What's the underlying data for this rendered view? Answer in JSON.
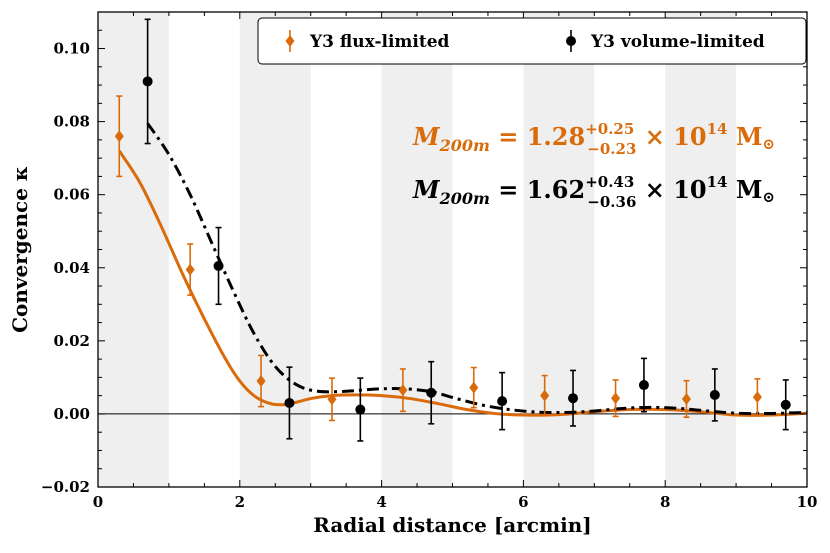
{
  "chart_data": {
    "type": "scatter",
    "xlabel": "Radial distance [arcmin]",
    "ylabel": "Convergence κ",
    "xlim": [
      0,
      10
    ],
    "ylim": [
      -0.02,
      0.11
    ],
    "xticks": [
      "0",
      "2",
      "4",
      "6",
      "8",
      "10"
    ],
    "xtick_values": [
      0,
      2,
      4,
      6,
      8,
      10
    ],
    "yticks": [
      "−0.02",
      "0.00",
      "0.02",
      "0.04",
      "0.06",
      "0.08",
      "0.10"
    ],
    "ytick_values": [
      -0.02,
      0.0,
      0.02,
      0.04,
      0.06,
      0.08,
      0.1
    ],
    "shaded_bands": [
      [
        0,
        1
      ],
      [
        2,
        3
      ],
      [
        4,
        5
      ],
      [
        6,
        7
      ],
      [
        8,
        9
      ]
    ],
    "legend_position": "top-right",
    "series": [
      {
        "name": "Y3 flux-limited",
        "color": "#d96b0b",
        "marker": "diamond",
        "x": [
          0.3,
          1.3,
          2.3,
          3.3,
          4.3,
          5.3,
          6.3,
          7.3,
          8.3,
          9.3
        ],
        "y": [
          0.076,
          0.0395,
          0.009,
          0.004,
          0.0065,
          0.0072,
          0.005,
          0.0043,
          0.0041,
          0.0046
        ],
        "err": [
          0.011,
          0.007,
          0.007,
          0.0058,
          0.0058,
          0.0055,
          0.0055,
          0.005,
          0.005,
          0.005
        ],
        "fit_x": [
          0.3,
          0.6,
          0.9,
          1.2,
          1.5,
          1.8,
          2.0,
          2.2,
          2.4,
          2.6,
          2.8,
          3.0,
          3.3,
          3.6,
          4.0,
          4.4,
          4.8,
          5.2,
          5.6,
          6.0,
          6.5,
          7.0,
          7.5,
          8.0,
          8.5,
          9.0,
          9.5,
          10.0
        ],
        "fit_y": [
          0.072,
          0.063,
          0.051,
          0.038,
          0.026,
          0.015,
          0.009,
          0.005,
          0.003,
          0.0025,
          0.0032,
          0.0042,
          0.005,
          0.0052,
          0.005,
          0.0042,
          0.0028,
          0.0012,
          0.0001,
          -0.0003,
          -0.0002,
          0.0006,
          0.0012,
          0.0012,
          0.0006,
          -0.0003,
          -0.0003,
          0.0002
        ]
      },
      {
        "name": "Y3 volume-limited",
        "color": "#000000",
        "marker": "circle",
        "x": [
          0.7,
          1.7,
          2.7,
          3.7,
          4.7,
          5.7,
          6.7,
          7.7,
          8.7,
          9.7
        ],
        "y": [
          0.091,
          0.0405,
          0.003,
          0.0012,
          0.0058,
          0.0035,
          0.0043,
          0.0079,
          0.0052,
          0.0025
        ],
        "err": [
          0.017,
          0.0105,
          0.0098,
          0.0086,
          0.0085,
          0.0078,
          0.0076,
          0.0073,
          0.0071,
          0.0068
        ],
        "fit_x": [
          0.7,
          1.0,
          1.3,
          1.6,
          1.9,
          2.2,
          2.5,
          2.8,
          3.1,
          3.5,
          3.9,
          4.3,
          4.7,
          5.0,
          5.4,
          5.8,
          6.2,
          6.6,
          7.0,
          7.4,
          7.8,
          8.2,
          8.6,
          9.0,
          9.4,
          9.8,
          10.0
        ],
        "fit_y": [
          0.0795,
          0.071,
          0.06,
          0.047,
          0.034,
          0.022,
          0.013,
          0.008,
          0.0062,
          0.0062,
          0.0068,
          0.0069,
          0.0061,
          0.0045,
          0.0025,
          0.0012,
          0.0005,
          0.0004,
          0.0008,
          0.0015,
          0.0018,
          0.0015,
          0.0008,
          0.0002,
          0.0001,
          0.0003,
          0.0004
        ]
      }
    ],
    "annotations": [
      {
        "name": "flux",
        "color": "#d96b0b",
        "lhs": "M",
        "sub": "200m",
        "eq": " = 1.28",
        "sup": "+0.25",
        "low": "−0.23",
        "times": " × 10",
        "exp": "14",
        "unit": " M",
        "sun": "⊙"
      },
      {
        "name": "volume",
        "color": "#000000",
        "lhs": "M",
        "sub": "200m",
        "eq": " = 1.62",
        "sup": "+0.43",
        "low": "−0.36",
        "times": " × 10",
        "exp": "14",
        "unit": " M",
        "sun": "⊙"
      }
    ]
  }
}
